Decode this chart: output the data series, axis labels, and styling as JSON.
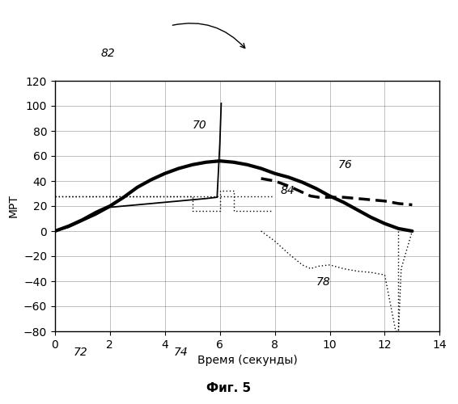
{
  "xlabel": "Время (секунды)",
  "ylabel": "МРТ",
  "fig_caption": "Фиг. 5",
  "xlim": [
    0,
    14
  ],
  "ylim": [
    -80,
    120
  ],
  "xticks": [
    0,
    2,
    4,
    6,
    8,
    10,
    12,
    14
  ],
  "yticks": [
    -80,
    -60,
    -40,
    -20,
    0,
    20,
    40,
    60,
    80,
    100,
    120
  ],
  "background_color": "#ffffff",
  "label_82": "82",
  "label_70": "70",
  "label_76": "76",
  "label_84": "84",
  "label_78": "78",
  "label_72": "72",
  "label_74": "74",
  "line76_x": [
    0,
    0.5,
    1.0,
    1.5,
    2.0,
    2.5,
    3.0,
    3.5,
    4.0,
    4.5,
    5.0,
    5.5,
    6.0,
    6.5,
    7.0,
    7.5,
    8.0,
    8.5,
    9.0,
    9.5,
    10.0,
    10.5,
    11.0,
    11.5,
    12.0,
    12.5,
    13.0
  ],
  "line76_y": [
    0,
    4,
    9,
    15,
    20,
    27,
    35,
    41,
    46,
    50,
    53,
    55,
    56,
    55,
    53,
    50,
    46,
    43,
    39,
    34,
    28,
    23,
    17,
    11,
    6,
    2,
    0
  ],
  "line70_x": [
    0,
    0.5,
    1.0,
    1.5,
    2.0,
    2.5,
    3.0,
    3.5,
    4.0,
    4.5,
    5.0,
    5.5,
    5.9,
    6.0,
    6.05
  ],
  "line70_y": [
    0,
    3,
    8,
    13,
    19,
    20,
    21,
    22,
    23,
    24,
    25,
    26,
    27,
    70,
    102
  ],
  "line72_x": [
    0,
    7.9
  ],
  "line72_y": [
    28,
    28
  ],
  "line74_x": [
    0.0,
    5.0,
    5.0,
    6.0,
    6.0,
    6.5,
    6.5,
    7.9
  ],
  "line74_y": [
    28,
    28,
    16,
    16,
    32,
    32,
    16,
    16
  ],
  "line84_x": [
    7.5,
    8.0,
    8.5,
    9.0,
    9.3,
    9.6,
    10.0,
    10.5,
    11.0,
    11.5,
    12.0,
    12.5,
    13.0
  ],
  "line84_y": [
    42,
    40,
    36,
    31,
    28,
    27,
    27,
    27,
    26,
    25,
    24,
    22,
    21
  ],
  "line78_x": [
    7.5,
    8.0,
    8.5,
    9.0,
    9.3,
    9.6,
    10.0,
    10.5,
    11.0,
    11.5,
    12.0,
    12.4,
    12.5,
    12.6,
    13.0
  ],
  "line78_y": [
    0,
    -8,
    -18,
    -27,
    -30,
    -28,
    -27,
    -30,
    -32,
    -33,
    -35,
    -80,
    -80,
    -30,
    0
  ]
}
